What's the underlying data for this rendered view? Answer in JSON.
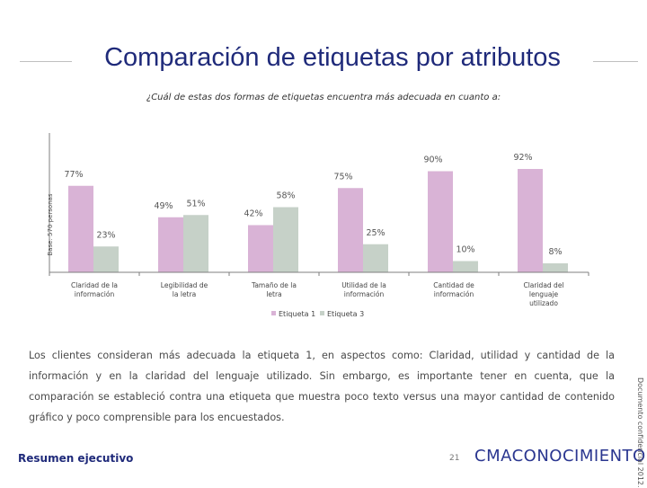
{
  "slide": {
    "title": "Comparación de etiquetas por atributos",
    "subtitle": "¿Cuál de estas dos formas de etiquetas encuentra más adecuada en cuanto a:",
    "paragraph": "Los clientes consideran más adecuada la etiqueta 1, en aspectos como: Claridad, utilidad y cantidad de la información y en la claridad del lenguaje utilizado. Sin embargo, es importante tener en cuenta, que la comparación se estableció contra una etiqueta que muestra poco texto versus una mayor cantidad de contenido gráfico y poco comprensible para los encuestados.",
    "footer_left": "Resumen ejecutivo",
    "page_number": "21",
    "logo_bold": "CMA",
    "logo_light": "CONOCIMIENTO",
    "side_note": "Documento confidencial 2012."
  },
  "colors": {
    "series1": "#d9b3d6",
    "series2": "#c6d1c8",
    "title": "#1f2a7a",
    "axis": "#7f7f7f"
  },
  "chart_data": {
    "type": "bar",
    "title": "",
    "ylabel": "Base: 570 personas",
    "xlabel": "",
    "ylim": [
      0,
      100
    ],
    "categories": [
      "Claridad de la información",
      "Legibilidad de la letra",
      "Tamaño de la letra",
      "Utilidad de la información",
      "Cantidad de información",
      "Claridad del lenguaje utilizado"
    ],
    "series": [
      {
        "name": "Etiqueta 1",
        "values": [
          77,
          49,
          42,
          75,
          90,
          92
        ],
        "labels": [
          "77%",
          "49%",
          "42%",
          "75%",
          "90%",
          "92%"
        ]
      },
      {
        "name": "Etiqueta 3",
        "values": [
          23,
          51,
          58,
          25,
          10,
          8
        ],
        "labels": [
          "23%",
          "51%",
          "58%",
          "25%",
          "10%",
          "8%"
        ]
      }
    ],
    "legend_position": "bottom"
  }
}
